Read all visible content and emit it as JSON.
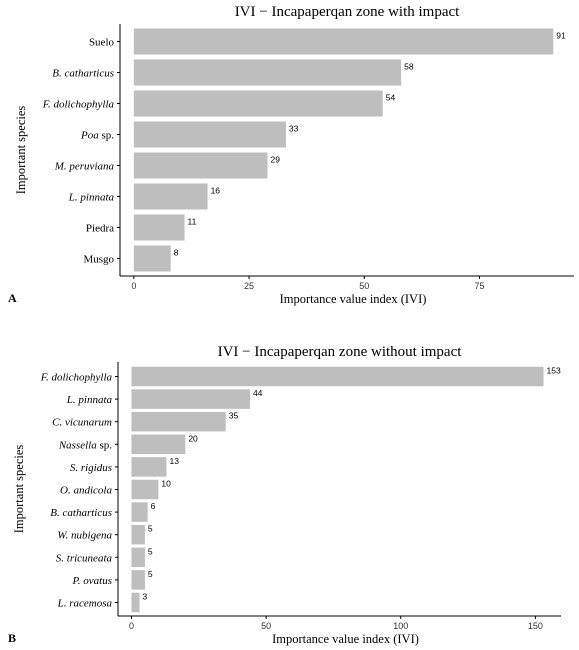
{
  "chart_data": [
    {
      "type": "bar",
      "orientation": "horizontal",
      "panel_label": "A",
      "title": "IVI − Incapaperqan zone with impact",
      "xlabel": "Importance value index (IVI)",
      "ylabel": "Important species",
      "categories": [
        {
          "text": "Suelo",
          "italic": false
        },
        {
          "text": "B. catharticus",
          "italic": true
        },
        {
          "text": "F. dolichophylla",
          "italic": true
        },
        {
          "text": "Poa",
          "suffix": " sp.",
          "italic": true
        },
        {
          "text": "M. peruviana",
          "italic": true
        },
        {
          "text": "L. pinnata",
          "italic": true
        },
        {
          "text": "Piedra",
          "italic": false
        },
        {
          "text": "Musgo",
          "italic": false
        }
      ],
      "values": [
        91,
        58,
        54,
        33,
        29,
        16,
        11,
        8
      ],
      "xlim": [
        -3,
        95.5
      ],
      "xticks": [
        0,
        25,
        50,
        75
      ],
      "color": "#bebebe"
    },
    {
      "type": "bar",
      "orientation": "horizontal",
      "panel_label": "B",
      "title": "IVI − Incapaperqan zone without impact",
      "xlabel": "Importance value index (IVI)",
      "ylabel": "Important species",
      "categories": [
        {
          "text": "F. dolichophylla",
          "italic": true
        },
        {
          "text": "L. pinnata",
          "italic": true
        },
        {
          "text": "C. vicunarum",
          "italic": true
        },
        {
          "text": "Nassella",
          "suffix": " sp.",
          "italic": true
        },
        {
          "text": "S. rigidus",
          "italic": true
        },
        {
          "text": "O. andicola",
          "italic": true
        },
        {
          "text": "B. catharticus",
          "italic": true
        },
        {
          "text": "W. nubigena",
          "italic": true
        },
        {
          "text": "S. tricuneata",
          "italic": true
        },
        {
          "text": "P. ovatus",
          "italic": true
        },
        {
          "text": "L. racemosa",
          "italic": true
        }
      ],
      "values": [
        153,
        44,
        35,
        20,
        13,
        10,
        6,
        5,
        5,
        5,
        3
      ],
      "xlim": [
        -5,
        159.5
      ],
      "xticks": [
        0,
        50,
        100,
        150
      ],
      "color": "#bebebe"
    }
  ]
}
